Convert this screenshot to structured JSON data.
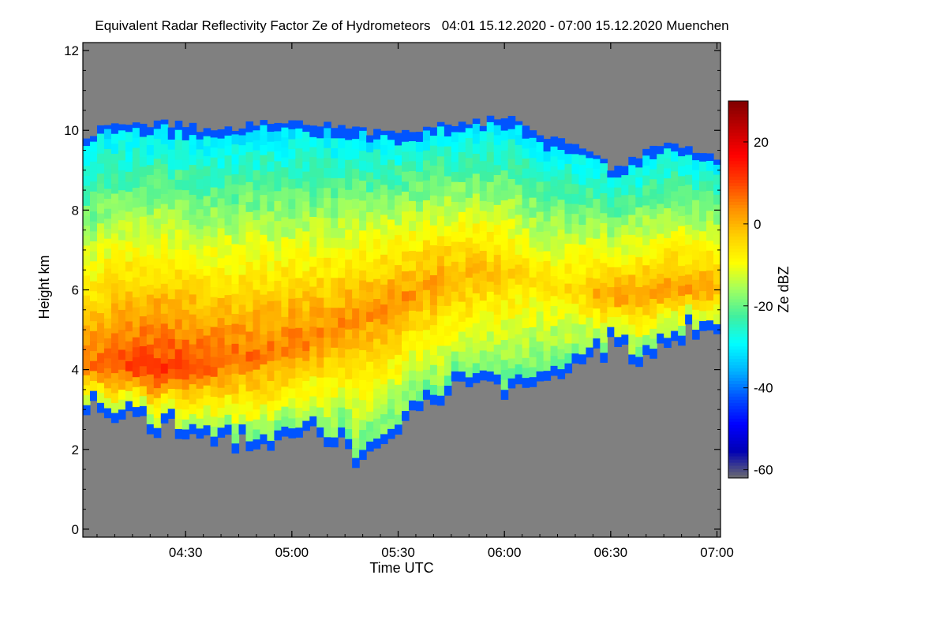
{
  "chart_data": {
    "type": "heatmap",
    "title": "Equivalent Radar Reflectivity Factor Ze of Hydrometeors   04:01 15.12.2020 - 07:00 15.12.2020 Muenchen",
    "xlabel": "Time UTC",
    "ylabel": "Height km",
    "colorbar_label": "Ze dBZ",
    "x_tick_labels": [
      "04:30",
      "05:00",
      "05:30",
      "06:00",
      "06:30",
      "07:00"
    ],
    "x_tick_minutes": [
      29,
      59,
      89,
      119,
      149,
      179
    ],
    "xlim_minutes": [
      0,
      180
    ],
    "y_tick_labels": [
      "0",
      "2",
      "4",
      "6",
      "8",
      "10",
      "12"
    ],
    "y_ticks": [
      0,
      2,
      4,
      6,
      8,
      10,
      12
    ],
    "ylim": [
      -0.2,
      12.2
    ],
    "colorbar_ticks": [
      20,
      0,
      -20,
      -40,
      -60
    ],
    "colorbar_range": [
      -62,
      30
    ],
    "no_data_color": "#808080",
    "colormap": [
      "#6e6e6e",
      "#0000b4",
      "#0000ff",
      "#0050ff",
      "#00b4ff",
      "#00ffff",
      "#40f0a0",
      "#a0ff60",
      "#ffff00",
      "#ffd000",
      "#ff9000",
      "#ff4000",
      "#ff0000",
      "#c00000",
      "#800000"
    ],
    "cloud_profile": {
      "time_minutes": [
        0,
        10,
        20,
        30,
        40,
        50,
        60,
        70,
        80,
        90,
        100,
        110,
        120,
        130,
        140,
        145,
        150,
        155,
        160,
        165,
        170,
        175,
        179
      ],
      "top_km": [
        9.9,
        10.1,
        10.2,
        10.1,
        10.0,
        10.2,
        10.2,
        10.1,
        10.0,
        10.0,
        10.1,
        10.2,
        10.3,
        9.9,
        9.7,
        9.4,
        9.0,
        9.3,
        9.6,
        9.6,
        9.5,
        9.4,
        9.3
      ],
      "base_km": [
        3.2,
        2.9,
        2.6,
        2.4,
        2.2,
        2.0,
        2.4,
        2.3,
        1.6,
        2.8,
        3.3,
        3.6,
        3.4,
        3.5,
        4.0,
        4.3,
        4.6,
        4.2,
        4.4,
        4.5,
        4.9,
        4.9,
        4.9
      ],
      "core_height_km": [
        4.0,
        4.1,
        4.0,
        4.1,
        4.2,
        4.4,
        4.6,
        5.0,
        5.4,
        5.8,
        6.2,
        6.4,
        6.5,
        6.3,
        6.0,
        5.9,
        5.8,
        5.8,
        5.9,
        6.0,
        6.0,
        6.0,
        6.0
      ],
      "core_ze_dbz": [
        6,
        10,
        12,
        10,
        8,
        6,
        6,
        4,
        4,
        3,
        2,
        0,
        -3,
        -6,
        -4,
        0,
        2,
        2,
        2,
        2,
        2,
        2,
        2
      ]
    }
  }
}
